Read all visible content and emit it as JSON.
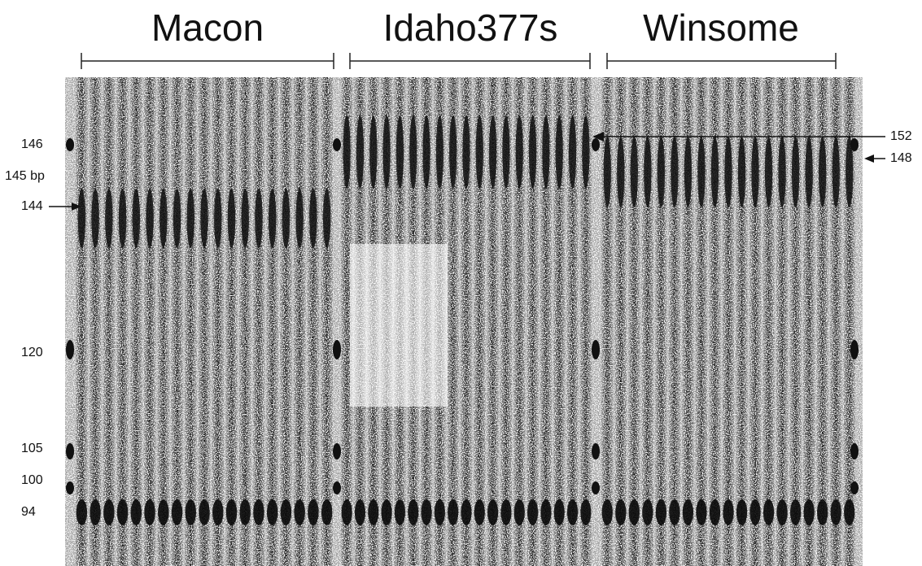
{
  "header": {
    "groups": [
      "Macon",
      "Idaho377s",
      "Winsome"
    ]
  },
  "size_markers": {
    "left": [
      "146",
      "145 bp",
      "144",
      "120",
      "105",
      "100",
      "94"
    ],
    "right": [
      "152",
      "148"
    ]
  }
}
